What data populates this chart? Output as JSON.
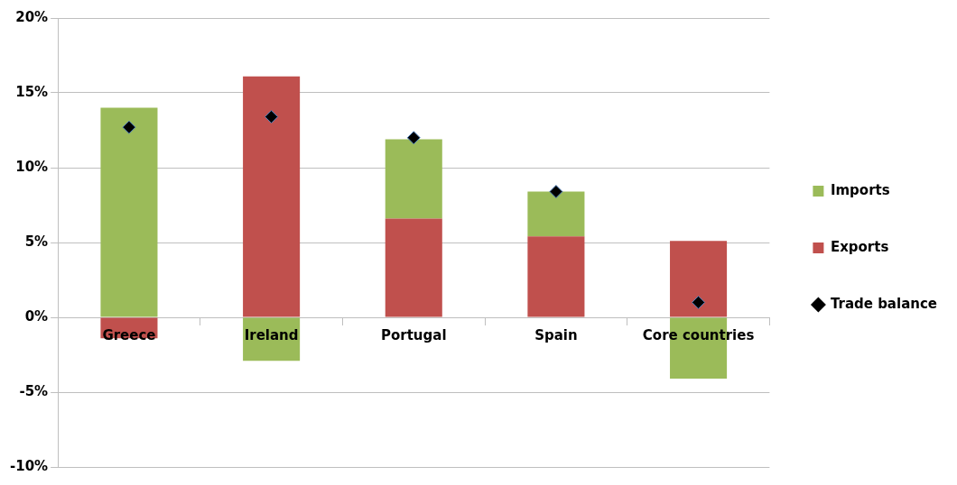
{
  "chart_data": {
    "type": "bar",
    "stacked": true,
    "categories": [
      "Greece",
      "Ireland",
      "Portugal",
      "Spain",
      "Core countries"
    ],
    "series": [
      {
        "name": "Exports",
        "color": "#c0504d",
        "values": [
          -1.4,
          16.1,
          6.6,
          5.4,
          5.1
        ]
      },
      {
        "name": "Imports",
        "color": "#9bbb59",
        "values": [
          14.0,
          -2.9,
          5.3,
          3.0,
          -4.1
        ]
      },
      {
        "name": "Trade balance",
        "type": "scatter",
        "color": "#000000",
        "marker": "diamond",
        "x": [
          "Greece",
          "Ireland",
          "Portugal",
          "Spain",
          "Core countries"
        ],
        "values": [
          12.7,
          13.4,
          12.0,
          8.4,
          1.0
        ]
      }
    ],
    "ylim": [
      -10,
      20
    ],
    "yticks": [
      {
        "value": -10,
        "label": "-10%"
      },
      {
        "value": -5,
        "label": "-5%"
      },
      {
        "value": 0,
        "label": "0%"
      },
      {
        "value": 5,
        "label": "5%"
      },
      {
        "value": 10,
        "label": "10%"
      },
      {
        "value": 15,
        "label": "15%"
      },
      {
        "value": 20,
        "label": "20%"
      }
    ],
    "grid": "y",
    "legend": "right"
  }
}
